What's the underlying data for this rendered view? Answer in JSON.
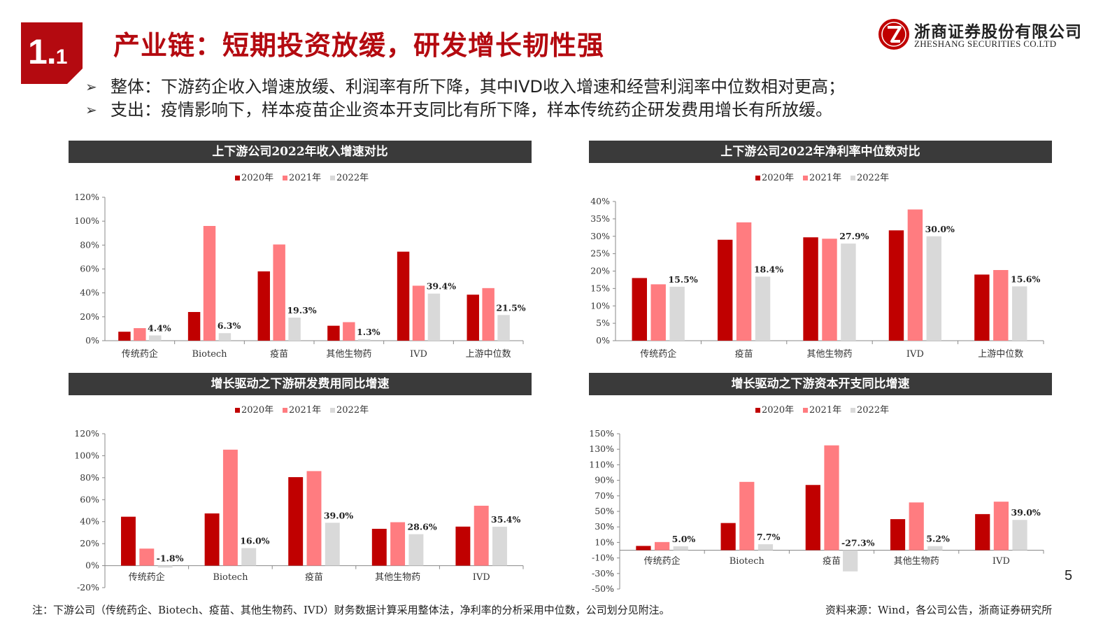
{
  "header": {
    "badge_main": "1.",
    "badge_sub": "1",
    "title": "产业链：短期投资放缓，研发增长韧性强",
    "logo_cn": "浙商证券股份有限公司",
    "logo_en": "ZHESHANG SECURITIES CO.LTD"
  },
  "bullets": [
    "整体：下游药企收入增速放缓、利润率有所下降，其中IVD收入增速和经营利润率中位数相对更高；",
    "支出：疫情影响下，样本疫苗企业资本开支同比有所下降，样本传统药企研发费用增长有所放缓。"
  ],
  "colors": {
    "y2020": "#c00000",
    "y2021": "#ff7c80",
    "y2022": "#d9d9d9",
    "title_red": "#b40a10",
    "title_bar": "#3a3a3a"
  },
  "chart_data": [
    {
      "type": "bar",
      "title": "上下游公司2022年收入增速对比",
      "categories": [
        "传统药企",
        "Biotech",
        "疫苗",
        "其他生物药",
        "IVD",
        "上游中位数"
      ],
      "series": [
        {
          "name": "2020年",
          "values": [
            7.5,
            24,
            58,
            12.5,
            74.5,
            38.5
          ]
        },
        {
          "name": "2021年",
          "values": [
            10.5,
            96,
            80.5,
            15.5,
            46,
            44
          ]
        },
        {
          "name": "2022年",
          "values": [
            4.4,
            6.3,
            19.3,
            1.3,
            39.4,
            21.5
          ]
        }
      ],
      "data_labels": [
        "4.4%",
        "6.3%",
        "19.3%",
        "1.3%",
        "39.4%",
        "21.5%"
      ],
      "ylim": [
        0,
        120
      ],
      "yticks": [
        "0%",
        "20%",
        "40%",
        "60%",
        "80%",
        "100%",
        "120%"
      ],
      "legend": "top"
    },
    {
      "type": "bar",
      "title": "上下游公司2022年净利率中位数对比",
      "categories": [
        "传统药企",
        "疫苗",
        "其他生物药",
        "IVD",
        "上游中位数"
      ],
      "series": [
        {
          "name": "2020年",
          "values": [
            18,
            29,
            29.7,
            31.7,
            19
          ]
        },
        {
          "name": "2021年",
          "values": [
            16.2,
            34,
            29.3,
            37.7,
            20.3
          ]
        },
        {
          "name": "2022年",
          "values": [
            15.5,
            18.4,
            27.9,
            30.0,
            15.6
          ]
        }
      ],
      "data_labels": [
        "15.5%",
        "18.4%",
        "27.9%",
        "30.0%",
        "15.6%"
      ],
      "ylim": [
        0,
        40
      ],
      "yticks": [
        "0%",
        "5%",
        "10%",
        "15%",
        "20%",
        "25%",
        "30%",
        "35%",
        "40%"
      ],
      "legend": "top"
    },
    {
      "type": "bar",
      "title": "增长驱动之下游研发费用同比增速",
      "categories": [
        "传统药企",
        "Biotech",
        "疫苗",
        "其他生物药",
        "IVD"
      ],
      "series": [
        {
          "name": "2020年",
          "values": [
            44.5,
            47.5,
            80.5,
            33.5,
            35.5
          ]
        },
        {
          "name": "2021年",
          "values": [
            15.5,
            105.5,
            86,
            39.5,
            54.5
          ]
        },
        {
          "name": "2022年",
          "values": [
            -1.8,
            16.0,
            39.0,
            28.6,
            35.4
          ]
        }
      ],
      "data_labels": [
        "-1.8%",
        "16.0%",
        "39.0%",
        "28.6%",
        "35.4%"
      ],
      "ylim": [
        -20,
        120
      ],
      "yticks": [
        "-20%",
        "0%",
        "20%",
        "40%",
        "60%",
        "80%",
        "100%",
        "120%"
      ],
      "legend": "top"
    },
    {
      "type": "bar",
      "title": "增长驱动之下游资本开支同比增速",
      "categories": [
        "传统药企",
        "Biotech",
        "疫苗",
        "其他生物药",
        "IVD"
      ],
      "series": [
        {
          "name": "2020年",
          "values": [
            5.5,
            35,
            84,
            40,
            46.5
          ]
        },
        {
          "name": "2021年",
          "values": [
            10.5,
            88,
            135,
            61.5,
            62.5
          ]
        },
        {
          "name": "2022年",
          "values": [
            5.0,
            7.7,
            -27.3,
            5.2,
            39.0
          ]
        }
      ],
      "data_labels": [
        "5.0%",
        "7.7%",
        "-27.3%",
        "5.2%",
        "39.0%"
      ],
      "ylim": [
        -50,
        150
      ],
      "yticks": [
        "-50%",
        "-30%",
        "-10%",
        "10%",
        "30%",
        "50%",
        "70%",
        "90%",
        "110%",
        "130%",
        "150%"
      ],
      "legend": "top"
    }
  ],
  "page_number": "5",
  "footnote": "注：下游公司（传统药企、Biotech、疫苗、其他生物药、IVD）财务数据计算采用整体法，净利率的分析采用中位数，公司划分见附注。",
  "source": "资料来源：Wind，各公司公告，浙商证券研究所"
}
